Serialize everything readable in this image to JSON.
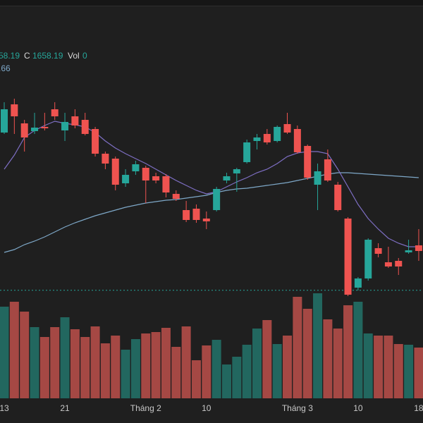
{
  "chart_data": {
    "type": "candlestick",
    "legend": {
      "open_fragment": "58.19",
      "close_label": "C",
      "close_value": "1658.19",
      "vol_label": "Vol",
      "vol_value": "0",
      "ma_fragment": ".66"
    },
    "categories": [
      "13",
      null,
      null,
      null,
      null,
      null,
      "21",
      null,
      null,
      null,
      null,
      null,
      null,
      null,
      "Tháng 2",
      null,
      null,
      null,
      null,
      null,
      "10",
      null,
      null,
      null,
      null,
      null,
      null,
      null,
      null,
      "Tháng 3",
      null,
      null,
      null,
      null,
      null,
      "10",
      null,
      null,
      null,
      null,
      null,
      "18"
    ],
    "open": [
      1882,
      1922,
      1895,
      1884,
      1890,
      1915,
      1885,
      1905,
      1900,
      1887,
      1852,
      1845,
      1810,
      1827,
      1832,
      1820,
      1820,
      1795,
      1772,
      1774,
      1760,
      1772,
      1814,
      1824,
      1840,
      1870,
      1880,
      1870,
      1894,
      1887,
      1863,
      1808,
      1844,
      1808,
      1760,
      1662,
      1675,
      1718,
      1698,
      1700,
      1712,
      1722
    ],
    "high": [
      1925,
      1930,
      1900,
      1910,
      1910,
      1925,
      1910,
      1915,
      1910,
      1890,
      1855,
      1848,
      1830,
      1842,
      1835,
      1825,
      1823,
      1800,
      1785,
      1780,
      1770,
      1805,
      1825,
      1832,
      1872,
      1880,
      1887,
      1892,
      1910,
      1892,
      1865,
      1838,
      1858,
      1812,
      1762,
      1677,
      1732,
      1725,
      1720,
      1704,
      1730,
      1745
    ],
    "low": [
      1880,
      1880,
      1855,
      1880,
      1885,
      1900,
      1870,
      1888,
      1878,
      1848,
      1830,
      1800,
      1805,
      1822,
      1782,
      1810,
      1790,
      1785,
      1755,
      1754,
      1745,
      1770,
      1810,
      1798,
      1838,
      1858,
      1865,
      1868,
      1880,
      1852,
      1815,
      1772,
      1812,
      1770,
      1650,
      1658,
      1672,
      1705,
      1690,
      1680,
      1710,
      1700
    ],
    "close": [
      1915,
      1905,
      1875,
      1889,
      1888,
      1905,
      1897,
      1892,
      1880,
      1852,
      1838,
      1808,
      1822,
      1837,
      1814,
      1814,
      1797,
      1788,
      1758,
      1758,
      1756,
      1802,
      1820,
      1830,
      1868,
      1875,
      1868,
      1890,
      1882,
      1854,
      1818,
      1827,
      1814,
      1772,
      1652,
      1675,
      1730,
      1710,
      1692,
      1692,
      1715,
      1714
    ],
    "volume": [
      130,
      137,
      123,
      101,
      87,
      101,
      115,
      98,
      87,
      102,
      78,
      89,
      69,
      84,
      92,
      94,
      100,
      73,
      102,
      54,
      75,
      83,
      48,
      59,
      76,
      99,
      111,
      77,
      89,
      144,
      127,
      149,
      112,
      99,
      132,
      137,
      92,
      89,
      89,
      77,
      76,
      72
    ],
    "ma_short": {
      "color": "#7e6fc4",
      "values": [
        1830,
        1850,
        1875,
        1885,
        1892,
        1898,
        1895,
        1893,
        1890,
        1882,
        1870,
        1860,
        1852,
        1845,
        1838,
        1830,
        1822,
        1814,
        1807,
        1800,
        1795,
        1798,
        1805,
        1812,
        1818,
        1825,
        1830,
        1838,
        1848,
        1853,
        1855,
        1855,
        1852,
        1830,
        1805,
        1780,
        1760,
        1745,
        1732,
        1725,
        1720,
        1720
      ]
    },
    "ma_long": {
      "color": "#7ea8c8",
      "values": [
        1712,
        1716,
        1723,
        1728,
        1734,
        1741,
        1748,
        1754,
        1759,
        1764,
        1768,
        1772,
        1776,
        1779,
        1782,
        1784,
        1786,
        1787,
        1789,
        1791,
        1793,
        1797,
        1800,
        1802,
        1803,
        1805,
        1807,
        1809,
        1811,
        1814,
        1817,
        1820,
        1823,
        1825,
        1825,
        1824,
        1823,
        1822,
        1821,
        1820,
        1819,
        1818
      ]
    },
    "last_price": 1658.19,
    "up_color": "#26a69a",
    "down_color": "#ef5350",
    "volume_up_color": "#22675f",
    "volume_down_color": "#a54844",
    "ylim": [
      1645,
      1970
    ],
    "vol_lim": [
      0,
      150
    ]
  }
}
